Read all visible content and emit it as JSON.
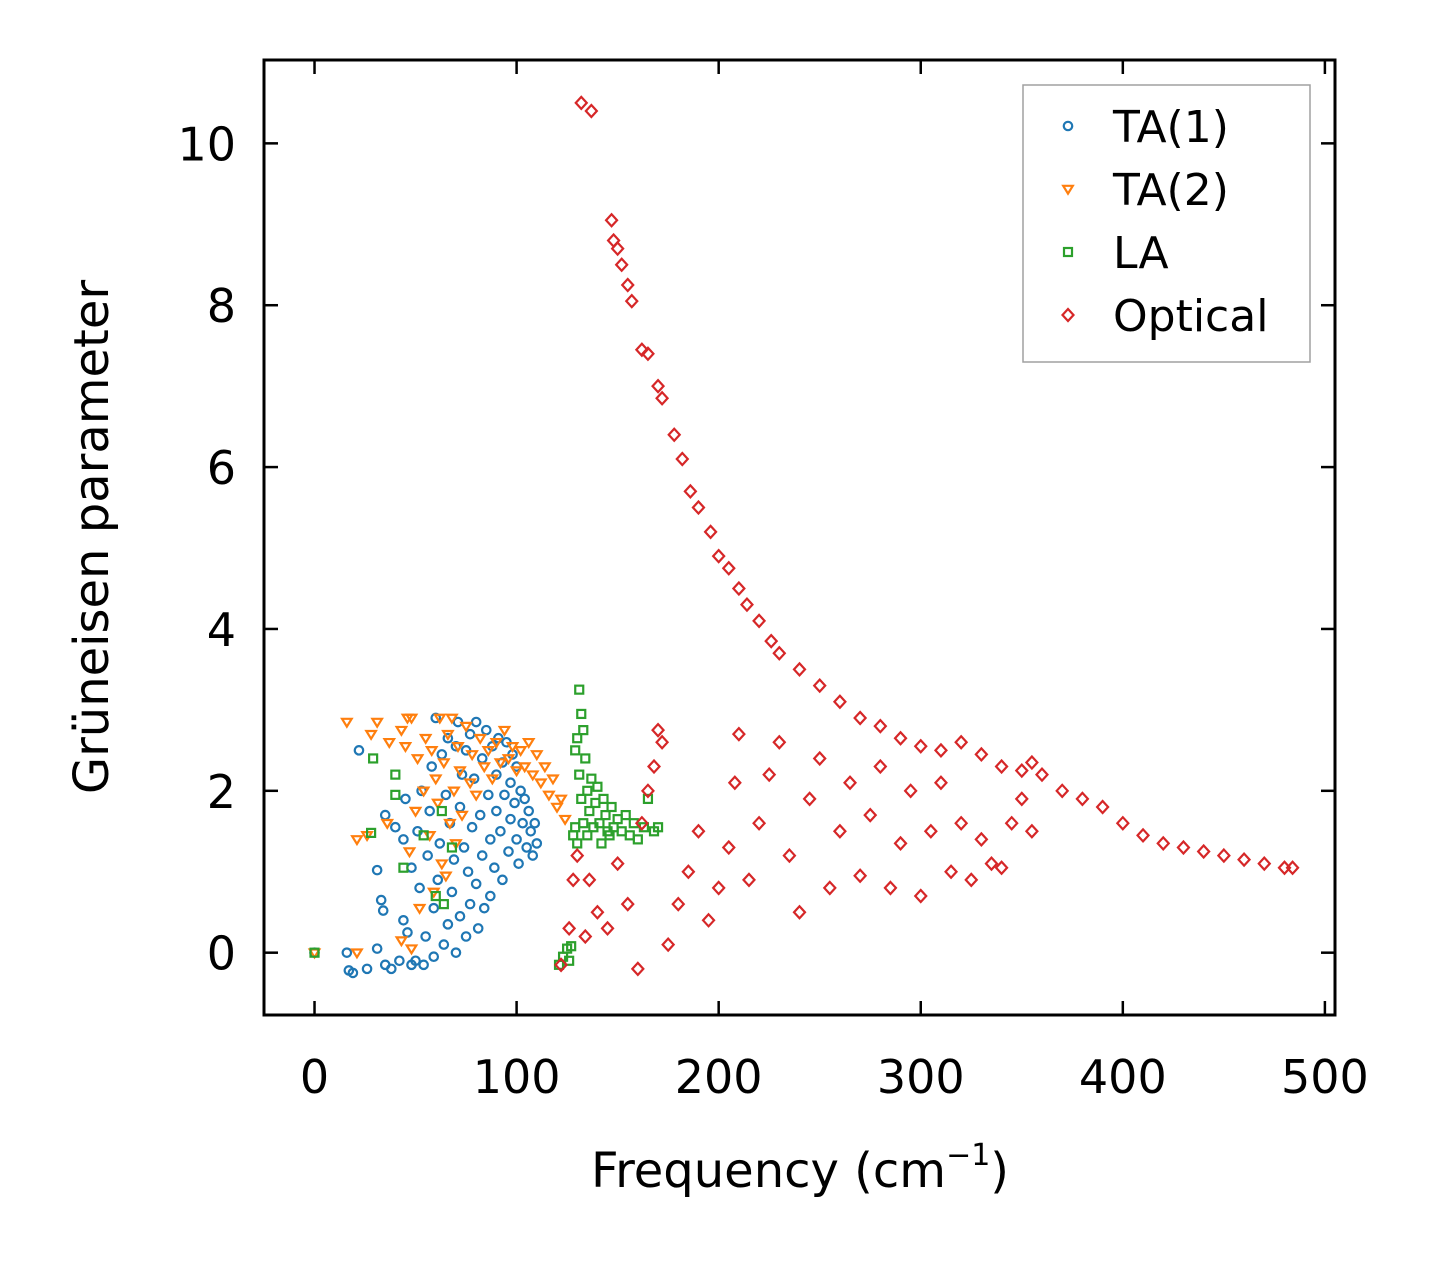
{
  "chart_data": {
    "type": "scatter",
    "title": "",
    "xlabel": "Frequency (cm",
    "xlabel_sup": "−1",
    "xlabel_close": ")",
    "ylabel": "Grüneisen parameter",
    "xlim": [
      -25,
      505
    ],
    "ylim": [
      -0.77,
      11.03
    ],
    "xticks": [
      0,
      100,
      200,
      300,
      400,
      500
    ],
    "yticks": [
      0,
      2,
      4,
      6,
      8,
      10
    ],
    "legend_position": "top-right",
    "series": [
      {
        "name": "TA(1)",
        "marker": "circle",
        "color": "#1f77b4",
        "points": [
          [
            0,
            0
          ],
          [
            16,
            0
          ],
          [
            17,
            -0.22
          ],
          [
            19,
            -0.25
          ],
          [
            22,
            2.5
          ],
          [
            26,
            -0.2
          ],
          [
            31,
            0.05
          ],
          [
            31,
            1.02
          ],
          [
            33,
            0.65
          ],
          [
            34,
            0.52
          ],
          [
            35,
            1.7
          ],
          [
            35,
            -0.15
          ],
          [
            38,
            -0.2
          ],
          [
            40,
            1.55
          ],
          [
            42,
            -0.1
          ],
          [
            44,
            1.4
          ],
          [
            44,
            0.4
          ],
          [
            45,
            1.9
          ],
          [
            46,
            0.25
          ],
          [
            48,
            -0.15
          ],
          [
            48,
            1.05
          ],
          [
            50,
            -0.1
          ],
          [
            51,
            1.5
          ],
          [
            52,
            0.8
          ],
          [
            53,
            2.0
          ],
          [
            54,
            -0.15
          ],
          [
            55,
            0.2
          ],
          [
            56,
            1.2
          ],
          [
            57,
            1.75
          ],
          [
            58,
            2.3
          ],
          [
            59,
            -0.05
          ],
          [
            59,
            0.55
          ],
          [
            60,
            2.9
          ],
          [
            61,
            0.9
          ],
          [
            62,
            1.35
          ],
          [
            63,
            2.45
          ],
          [
            64,
            0.1
          ],
          [
            65,
            1.95
          ],
          [
            66,
            0.35
          ],
          [
            66,
            2.65
          ],
          [
            67,
            1.6
          ],
          [
            68,
            0.75
          ],
          [
            69,
            1.15
          ],
          [
            70,
            2.55
          ],
          [
            70,
            0.0
          ],
          [
            71,
            2.85
          ],
          [
            72,
            1.8
          ],
          [
            72,
            0.45
          ],
          [
            73,
            2.2
          ],
          [
            74,
            1.3
          ],
          [
            75,
            0.2
          ],
          [
            75,
            2.5
          ],
          [
            76,
            1.0
          ],
          [
            77,
            0.6
          ],
          [
            77,
            2.7
          ],
          [
            78,
            1.55
          ],
          [
            79,
            2.15
          ],
          [
            80,
            0.85
          ],
          [
            80,
            2.85
          ],
          [
            81,
            0.3
          ],
          [
            82,
            1.7
          ],
          [
            83,
            2.4
          ],
          [
            83,
            1.2
          ],
          [
            84,
            0.55
          ],
          [
            85,
            2.75
          ],
          [
            86,
            1.95
          ],
          [
            87,
            1.4
          ],
          [
            87,
            0.7
          ],
          [
            88,
            2.55
          ],
          [
            89,
            1.05
          ],
          [
            90,
            2.2
          ],
          [
            90,
            1.75
          ],
          [
            91,
            2.65
          ],
          [
            92,
            1.5
          ],
          [
            93,
            0.9
          ],
          [
            93,
            2.35
          ],
          [
            94,
            1.95
          ],
          [
            95,
            2.6
          ],
          [
            96,
            1.25
          ],
          [
            97,
            2.1
          ],
          [
            97,
            1.65
          ],
          [
            98,
            2.45
          ],
          [
            99,
            1.85
          ],
          [
            100,
            1.4
          ],
          [
            100,
            2.3
          ],
          [
            101,
            1.1
          ],
          [
            102,
            2.0
          ],
          [
            103,
            1.6
          ],
          [
            104,
            1.9
          ],
          [
            105,
            1.3
          ],
          [
            106,
            1.75
          ],
          [
            107,
            1.5
          ],
          [
            108,
            1.2
          ],
          [
            109,
            1.6
          ],
          [
            110,
            1.35
          ]
        ]
      },
      {
        "name": "TA(2)",
        "marker": "triangle-down",
        "color": "#ff7f0e",
        "points": [
          [
            0,
            0
          ],
          [
            16,
            2.85
          ],
          [
            21,
            0
          ],
          [
            21,
            1.4
          ],
          [
            26,
            1.45
          ],
          [
            28,
            2.7
          ],
          [
            31,
            2.85
          ],
          [
            36,
            1.6
          ],
          [
            37,
            2.6
          ],
          [
            43,
            2.75
          ],
          [
            43,
            0.15
          ],
          [
            45,
            2.55
          ],
          [
            46,
            2.9
          ],
          [
            47,
            1.25
          ],
          [
            48,
            2.9
          ],
          [
            48,
            0.05
          ],
          [
            50,
            1.75
          ],
          [
            51,
            2.4
          ],
          [
            52,
            0.55
          ],
          [
            54,
            2.0
          ],
          [
            55,
            2.65
          ],
          [
            57,
            1.45
          ],
          [
            58,
            2.5
          ],
          [
            59,
            0.75
          ],
          [
            60,
            2.15
          ],
          [
            61,
            1.85
          ],
          [
            62,
            2.9
          ],
          [
            63,
            1.1
          ],
          [
            64,
            2.35
          ],
          [
            65,
            0.95
          ],
          [
            66,
            2.7
          ],
          [
            67,
            1.6
          ],
          [
            68,
            2.9
          ],
          [
            69,
            2.0
          ],
          [
            70,
            1.35
          ],
          [
            71,
            2.55
          ],
          [
            72,
            2.25
          ],
          [
            73,
            1.7
          ],
          [
            75,
            2.8
          ],
          [
            77,
            2.1
          ],
          [
            78,
            2.45
          ],
          [
            80,
            1.95
          ],
          [
            82,
            2.65
          ],
          [
            84,
            2.3
          ],
          [
            86,
            2.5
          ],
          [
            88,
            2.15
          ],
          [
            90,
            2.6
          ],
          [
            92,
            2.35
          ],
          [
            94,
            2.75
          ],
          [
            96,
            2.4
          ],
          [
            98,
            2.55
          ],
          [
            100,
            2.25
          ],
          [
            102,
            2.5
          ],
          [
            104,
            2.3
          ],
          [
            106,
            2.6
          ],
          [
            108,
            2.2
          ],
          [
            110,
            2.45
          ],
          [
            112,
            2.1
          ],
          [
            114,
            2.3
          ],
          [
            116,
            1.95
          ],
          [
            118,
            2.15
          ],
          [
            120,
            1.8
          ],
          [
            122,
            1.9
          ],
          [
            124,
            1.65
          ]
        ]
      },
      {
        "name": "LA",
        "marker": "square",
        "color": "#2ca02c",
        "points": [
          [
            0,
            0
          ],
          [
            28,
            1.48
          ],
          [
            29,
            2.4
          ],
          [
            40,
            2.2
          ],
          [
            40,
            1.95
          ],
          [
            44,
            1.05
          ],
          [
            54,
            1.45
          ],
          [
            60,
            0.7
          ],
          [
            63,
            1.75
          ],
          [
            64,
            0.6
          ],
          [
            68,
            1.3
          ],
          [
            121,
            -0.15
          ],
          [
            123,
            -0.05
          ],
          [
            125,
            0.05
          ],
          [
            126,
            -0.1
          ],
          [
            127,
            0.08
          ],
          [
            128,
            1.45
          ],
          [
            129,
            1.55
          ],
          [
            129,
            2.5
          ],
          [
            130,
            2.65
          ],
          [
            130,
            1.35
          ],
          [
            131,
            2.2
          ],
          [
            131,
            3.25
          ],
          [
            132,
            2.95
          ],
          [
            132,
            1.9
          ],
          [
            133,
            2.75
          ],
          [
            133,
            1.6
          ],
          [
            134,
            2.4
          ],
          [
            135,
            1.45
          ],
          [
            135,
            2.0
          ],
          [
            136,
            1.75
          ],
          [
            137,
            2.15
          ],
          [
            138,
            1.55
          ],
          [
            139,
            1.85
          ],
          [
            140,
            2.05
          ],
          [
            141,
            1.6
          ],
          [
            142,
            1.35
          ],
          [
            143,
            1.9
          ],
          [
            144,
            1.7
          ],
          [
            145,
            1.5
          ],
          [
            146,
            1.45
          ],
          [
            147,
            1.8
          ],
          [
            148,
            1.55
          ],
          [
            150,
            1.65
          ],
          [
            152,
            1.5
          ],
          [
            154,
            1.7
          ],
          [
            156,
            1.45
          ],
          [
            158,
            1.6
          ],
          [
            160,
            1.4
          ],
          [
            163,
            1.55
          ],
          [
            165,
            1.9
          ],
          [
            168,
            1.5
          ],
          [
            170,
            1.55
          ]
        ]
      },
      {
        "name": "Optical",
        "marker": "diamond",
        "color": "#d62728",
        "points": [
          [
            132,
            10.5
          ],
          [
            137,
            10.4
          ],
          [
            147,
            9.05
          ],
          [
            148,
            8.8
          ],
          [
            150,
            8.7
          ],
          [
            152,
            8.5
          ],
          [
            155,
            8.25
          ],
          [
            157,
            8.05
          ],
          [
            162,
            7.45
          ],
          [
            165,
            7.4
          ],
          [
            170,
            7.0
          ],
          [
            172,
            6.85
          ],
          [
            178,
            6.4
          ],
          [
            182,
            6.1
          ],
          [
            186,
            5.7
          ],
          [
            190,
            5.5
          ],
          [
            196,
            5.2
          ],
          [
            200,
            4.9
          ],
          [
            205,
            4.75
          ],
          [
            210,
            4.5
          ],
          [
            214,
            4.3
          ],
          [
            220,
            4.1
          ],
          [
            226,
            3.85
          ],
          [
            230,
            3.7
          ],
          [
            240,
            3.5
          ],
          [
            250,
            3.3
          ],
          [
            260,
            3.1
          ],
          [
            270,
            2.9
          ],
          [
            280,
            2.8
          ],
          [
            290,
            2.65
          ],
          [
            300,
            2.55
          ],
          [
            310,
            2.5
          ],
          [
            320,
            2.6
          ],
          [
            330,
            2.45
          ],
          [
            340,
            2.3
          ],
          [
            350,
            2.25
          ],
          [
            355,
            2.35
          ],
          [
            360,
            2.2
          ],
          [
            370,
            2.0
          ],
          [
            380,
            1.9
          ],
          [
            390,
            1.8
          ],
          [
            400,
            1.6
          ],
          [
            410,
            1.45
          ],
          [
            420,
            1.35
          ],
          [
            430,
            1.3
          ],
          [
            440,
            1.25
          ],
          [
            450,
            1.2
          ],
          [
            460,
            1.15
          ],
          [
            470,
            1.1
          ],
          [
            480,
            1.05
          ],
          [
            484,
            1.05
          ],
          [
            122,
            -0.15
          ],
          [
            126,
            0.3
          ],
          [
            128,
            0.9
          ],
          [
            130,
            1.2
          ],
          [
            134,
            0.2
          ],
          [
            136,
            0.9
          ],
          [
            140,
            0.5
          ],
          [
            145,
            0.3
          ],
          [
            150,
            1.1
          ],
          [
            155,
            0.6
          ],
          [
            160,
            -0.2
          ],
          [
            162,
            1.6
          ],
          [
            165,
            2.0
          ],
          [
            168,
            2.3
          ],
          [
            170,
            2.75
          ],
          [
            172,
            2.6
          ],
          [
            175,
            0.1
          ],
          [
            180,
            0.6
          ],
          [
            185,
            1.0
          ],
          [
            190,
            1.5
          ],
          [
            195,
            0.4
          ],
          [
            200,
            0.8
          ],
          [
            205,
            1.3
          ],
          [
            208,
            2.1
          ],
          [
            210,
            2.7
          ],
          [
            215,
            0.9
          ],
          [
            220,
            1.6
          ],
          [
            225,
            2.2
          ],
          [
            230,
            2.6
          ],
          [
            235,
            1.2
          ],
          [
            240,
            0.5
          ],
          [
            245,
            1.9
          ],
          [
            250,
            2.4
          ],
          [
            255,
            0.8
          ],
          [
            260,
            1.5
          ],
          [
            265,
            2.1
          ],
          [
            270,
            0.95
          ],
          [
            275,
            1.7
          ],
          [
            280,
            2.3
          ],
          [
            285,
            0.8
          ],
          [
            290,
            1.35
          ],
          [
            295,
            2.0
          ],
          [
            300,
            0.7
          ],
          [
            305,
            1.5
          ],
          [
            310,
            2.1
          ],
          [
            315,
            1.0
          ],
          [
            320,
            1.6
          ],
          [
            325,
            0.9
          ],
          [
            330,
            1.4
          ],
          [
            335,
            1.1
          ],
          [
            340,
            1.05
          ],
          [
            345,
            1.6
          ],
          [
            350,
            1.9
          ],
          [
            355,
            1.5
          ]
        ]
      }
    ]
  }
}
